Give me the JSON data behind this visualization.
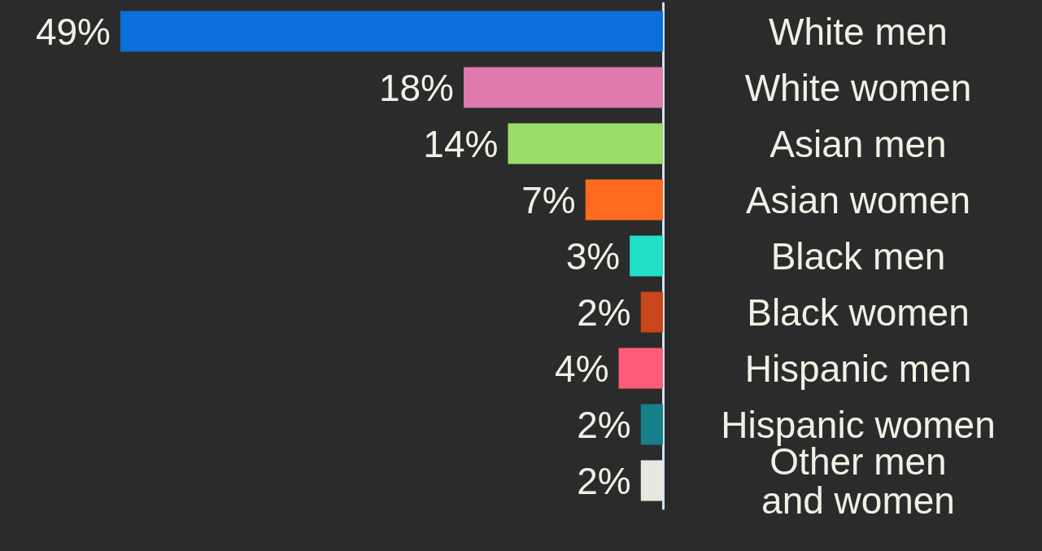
{
  "chart_data": {
    "type": "bar",
    "orientation": "horizontal",
    "categories": [
      "White men",
      "White women",
      "Asian men",
      "Asian women",
      "Black men",
      "Black women",
      "Hispanic men",
      "Hispanic women",
      "Other men and women"
    ],
    "values": [
      49,
      18,
      14,
      7,
      3,
      2,
      4,
      2,
      2
    ],
    "value_labels": [
      "49%",
      "18%",
      "14%",
      "7%",
      "3%",
      "2%",
      "4%",
      "2%",
      "2%"
    ],
    "colors": [
      "#0a6fdb",
      "#e07aad",
      "#99dd66",
      "#ff6a1f",
      "#22e0c8",
      "#c9461a",
      "#ff5c7a",
      "#157f8a",
      "#e8e8e0"
    ],
    "data_labels": false
  }
}
